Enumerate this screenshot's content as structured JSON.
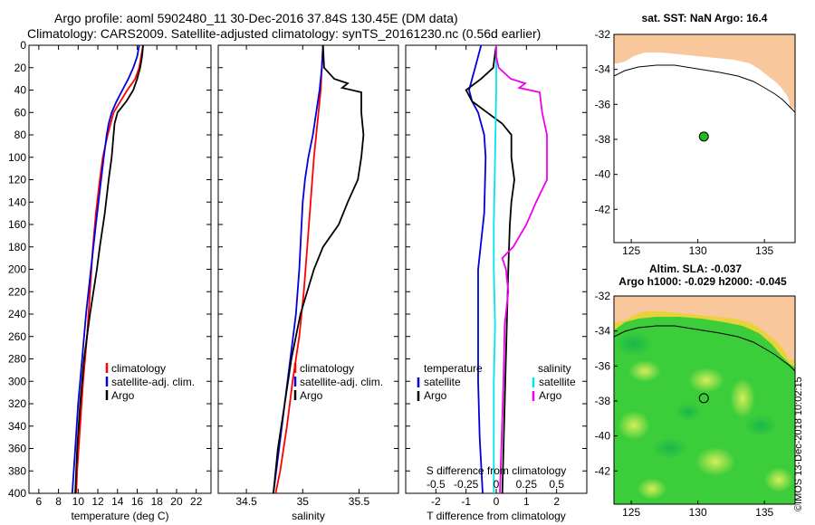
{
  "titles": {
    "line1": "Argo profile: aoml 5902480_11 30-Dec-2016 37.84S 130.45E (DM data)",
    "line2": "Climatology: CARS2009. Satellite-adjusted climatology: synTS_20161230.nc (0.56d earlier)"
  },
  "colors": {
    "climatology": "#ff0000",
    "satellite": "#0000dd",
    "argo": "#000000",
    "salinity_satellite": "#00e5ee",
    "salinity_argo": "#ee00ee",
    "land": "#f8c89c",
    "profile_dot": "#22bb22"
  },
  "chart_data": [
    {
      "type": "line",
      "name": "temperature-profile",
      "xlabel": "temperature (deg C)",
      "ylabel": "depth",
      "xlim": [
        5,
        23.5
      ],
      "ylim": [
        400,
        0
      ],
      "xticks": [
        6,
        8,
        10,
        12,
        14,
        16,
        18,
        20,
        22
      ],
      "yticks": [
        0,
        20,
        40,
        60,
        80,
        100,
        120,
        140,
        160,
        180,
        200,
        220,
        240,
        260,
        280,
        300,
        320,
        340,
        360,
        380,
        400
      ],
      "legend": [
        "climatology",
        "satellite-adj. clim.",
        "Argo"
      ],
      "legend_position": "lower-right",
      "series": [
        {
          "name": "climatology",
          "depth": [
            0,
            20,
            30,
            40,
            60,
            80,
            100,
            120,
            150,
            180,
            220,
            260,
            300,
            340,
            380,
            400
          ],
          "values": [
            16.6,
            16.2,
            15.8,
            15.0,
            13.6,
            13.0,
            12.5,
            12.2,
            11.8,
            11.5,
            11.2,
            10.9,
            10.5,
            10.2,
            9.9,
            9.8
          ]
        },
        {
          "name": "satellite-adj. clim.",
          "depth": [
            0,
            10,
            20,
            30,
            40,
            50,
            60,
            70,
            80,
            100,
            130,
            160,
            200,
            240,
            280,
            320,
            360,
            400
          ],
          "values": [
            16.2,
            16.0,
            15.6,
            15.1,
            14.5,
            13.9,
            13.4,
            13.1,
            12.9,
            12.6,
            12.2,
            11.8,
            11.3,
            10.8,
            10.4,
            10.0,
            9.7,
            9.4
          ]
        },
        {
          "name": "Argo",
          "depth": [
            0,
            10,
            20,
            30,
            40,
            50,
            60,
            70,
            80,
            100,
            120,
            150,
            180,
            200,
            240,
            280,
            320,
            360,
            400
          ],
          "values": [
            16.6,
            16.5,
            16.3,
            16.0,
            15.6,
            14.9,
            14.0,
            13.7,
            13.6,
            13.4,
            13.1,
            12.7,
            12.2,
            11.9,
            11.2,
            10.6,
            10.2,
            9.9,
            9.7
          ]
        }
      ]
    },
    {
      "type": "line",
      "name": "salinity-profile",
      "xlabel": "salinity",
      "ylabel": "depth",
      "xlim": [
        34.25,
        35.85
      ],
      "ylim": [
        400,
        0
      ],
      "xticks": [
        34.5,
        35,
        35.5
      ],
      "xticklabels": [
        "34.5",
        "35",
        "35.5"
      ],
      "legend": [
        "climatology",
        "satellite-adj. clim.",
        "Argo"
      ],
      "legend_position": "lower-right",
      "series": [
        {
          "name": "climatology",
          "depth": [
            0,
            20,
            40,
            60,
            80,
            100,
            140,
            180,
            220,
            260,
            300,
            340,
            380,
            400
          ],
          "values": [
            35.18,
            35.17,
            35.16,
            35.14,
            35.12,
            35.1,
            35.07,
            35.04,
            35.01,
            34.97,
            34.91,
            34.86,
            34.8,
            34.76
          ]
        },
        {
          "name": "satellite-adj. clim.",
          "depth": [
            0,
            20,
            40,
            60,
            80,
            100,
            120,
            140,
            160,
            200,
            240,
            280,
            320,
            360,
            400
          ],
          "values": [
            35.18,
            35.17,
            35.15,
            35.12,
            35.09,
            35.05,
            35.02,
            35.0,
            34.99,
            34.97,
            34.94,
            34.89,
            34.84,
            34.79,
            34.74
          ]
        },
        {
          "name": "Argo",
          "depth": [
            0,
            20,
            30,
            34,
            38,
            42,
            60,
            80,
            100,
            120,
            140,
            160,
            180,
            200,
            240,
            280,
            320,
            360,
            400
          ],
          "values": [
            35.18,
            35.19,
            35.28,
            35.4,
            35.35,
            35.52,
            35.52,
            35.54,
            35.52,
            35.49,
            35.4,
            35.32,
            35.18,
            35.1,
            34.98,
            34.9,
            34.84,
            34.78,
            34.74
          ]
        }
      ]
    },
    {
      "type": "line",
      "name": "difference-profile",
      "xlabel": "T difference from climatology",
      "xlabel_top": "S difference from climatology",
      "xlim": [
        -3,
        3
      ],
      "ylim": [
        400,
        0
      ],
      "xticks": [
        -2,
        -1,
        0,
        1,
        2
      ],
      "xticklabels": [
        "-2",
        "-1",
        "0",
        "1",
        "2"
      ],
      "s_xlim": [
        -0.75,
        0.75
      ],
      "s_xticks": [
        -0.5,
        -0.25,
        0,
        0.25,
        0.5
      ],
      "s_xticklabels": [
        "-0.5",
        "-0.25",
        "0",
        "0.25",
        "0.5"
      ],
      "legend_temperature": {
        "header": "temperature",
        "items": [
          "satellite",
          "Argo"
        ]
      },
      "legend_salinity": {
        "header": "salinity",
        "items": [
          "satellite",
          "Argo"
        ]
      },
      "series": [
        {
          "name": "temperature satellite",
          "axis": "T",
          "depth": [
            0,
            10,
            20,
            30,
            40,
            50,
            60,
            80,
            100,
            150,
            200,
            250,
            300,
            350,
            400
          ],
          "values": [
            -0.5,
            -0.6,
            -0.7,
            -0.8,
            -0.9,
            -0.8,
            -0.6,
            -0.4,
            -0.35,
            -0.4,
            -0.6,
            -0.6,
            -0.6,
            -0.55,
            -0.45
          ]
        },
        {
          "name": "temperature Argo",
          "axis": "T",
          "depth": [
            0,
            10,
            20,
            30,
            40,
            50,
            60,
            70,
            80,
            100,
            120,
            140,
            160,
            200,
            400
          ],
          "values": [
            0.0,
            -0.05,
            -0.1,
            -0.5,
            -1.0,
            -0.8,
            -0.3,
            0.2,
            0.5,
            0.5,
            0.6,
            0.5,
            0.45,
            0.4,
            0.2
          ]
        },
        {
          "name": "salinity satellite",
          "axis": "S",
          "depth": [
            0,
            40,
            100,
            160,
            200,
            250,
            300,
            400
          ],
          "values": [
            0.0,
            0.0,
            -0.01,
            -0.02,
            -0.02,
            -0.01,
            -0.02,
            -0.02
          ]
        },
        {
          "name": "salinity Argo",
          "axis": "S",
          "depth": [
            0,
            10,
            20,
            30,
            34,
            38,
            42,
            60,
            80,
            100,
            120,
            140,
            160,
            180,
            190,
            200,
            220,
            250,
            300,
            400
          ],
          "values": [
            0.0,
            0.0,
            0.02,
            0.12,
            0.24,
            0.19,
            0.36,
            0.38,
            0.42,
            0.42,
            0.42,
            0.33,
            0.25,
            0.14,
            0.05,
            0.08,
            0.1,
            0.07,
            0.06,
            0.03
          ]
        }
      ]
    },
    {
      "type": "map",
      "name": "sst-map",
      "title": "sat. SST: NaN Argo: 16.4",
      "xlim": [
        123.7,
        137.3
      ],
      "ylim": [
        -43.9,
        -32
      ],
      "xticks": [
        125,
        130,
        135
      ],
      "yticks": [
        -32,
        -34,
        -36,
        -38,
        -40,
        -42
      ],
      "profile_lon": 130.45,
      "profile_lat": -37.84
    },
    {
      "type": "map",
      "name": "sla-map",
      "title": "Altim. SLA: -0.037",
      "subtitle": "Argo h1000: -0.029 h2000: -0.045",
      "xlim": [
        123.7,
        137.3
      ],
      "ylim": [
        -43.9,
        -32
      ],
      "xticks": [
        125,
        130,
        135
      ],
      "yticks": [
        -32,
        -34,
        -36,
        -38,
        -40,
        -42
      ],
      "profile_lon": 130.45,
      "profile_lat": -37.84
    }
  ],
  "credit": "©IMOS 13-Dec-2018 10:02:15"
}
